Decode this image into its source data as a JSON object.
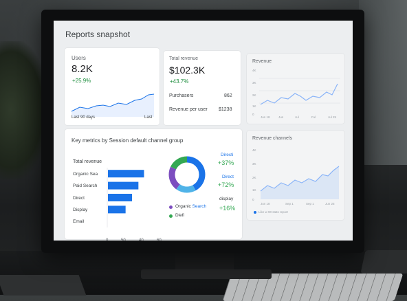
{
  "screen": {
    "title": "Reports snapshot"
  },
  "users_card": {
    "label": "Users",
    "value": "8.2K",
    "delta": "+25.9%",
    "footer_left": "Last 90 days",
    "footer_right": "Last"
  },
  "revenue_card": {
    "label": "Total revenue",
    "value": "$102.3K",
    "delta": "+43.7%",
    "rows": [
      {
        "label": "Purchasers",
        "value": "862"
      },
      {
        "label": "Revenue per user",
        "value": "$1238"
      }
    ]
  },
  "revenue_chart_card": {
    "label": "Revenue",
    "x_ticks": [
      "Jun 18",
      "Jun",
      "Jul",
      "Ful",
      "Jul 25"
    ],
    "y_ticks": [
      "4K",
      "3K",
      "2K",
      "1K",
      "0"
    ]
  },
  "key_metrics_card": {
    "title": "Key metrics by Session default channel group",
    "bar_label": "Total revenue",
    "chart_data": {
      "type": "bar",
      "categories": [
        "Organic Sea",
        "Paid Search",
        "Direct",
        "Display",
        "Email"
      ],
      "values": [
        45,
        38,
        30,
        22,
        0
      ],
      "xlim": [
        0,
        60
      ],
      "x_ticks": [
        "0",
        "50",
        "40",
        "60"
      ]
    },
    "donut": {
      "segments": [
        {
          "color": "#1a73e8",
          "fraction": 0.42
        },
        {
          "color": "#4fb3e8",
          "fraction": 0.18
        },
        {
          "color": "#7c4dbf",
          "fraction": 0.22
        },
        {
          "color": "#34a853",
          "fraction": 0.18
        }
      ]
    },
    "stats": [
      {
        "label": "Directi",
        "value": "+37%"
      },
      {
        "label": "Direct",
        "value": "+72%"
      },
      {
        "label": "display",
        "value": "+16%"
      }
    ],
    "legend": [
      {
        "label": "Organic",
        "suffix": "Search",
        "color": "#7c4dbf"
      },
      {
        "label": "Diefi",
        "suffix": "",
        "color": "#34a853"
      }
    ]
  },
  "channels_card": {
    "label": "Revenue channels",
    "x_ticks": [
      "Jun 18",
      "Sep 1",
      "Sep 1",
      "Jun 25"
    ],
    "y_ticks": [
      "4K",
      "3K",
      "2K",
      "1K",
      "0"
    ],
    "legend": "Like w 90 stats report"
  }
}
